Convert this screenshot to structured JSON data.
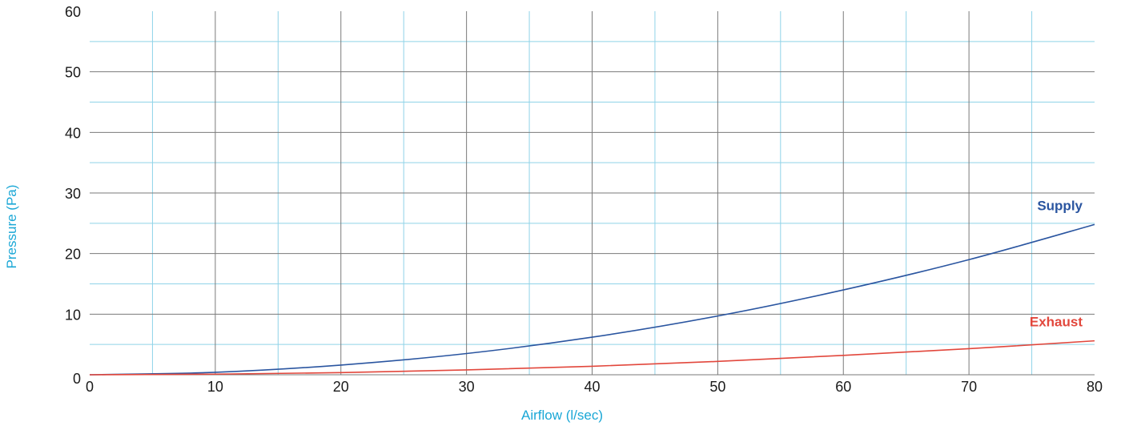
{
  "chart_data": {
    "type": "line",
    "xlabel": "Airflow (l/sec)",
    "ylabel": "Pressure (Pa)",
    "xlim": [
      0,
      80
    ],
    "ylim": [
      0,
      60
    ],
    "x_ticks": [
      "0",
      "10",
      "20",
      "30",
      "40",
      "50",
      "60",
      "70",
      "80"
    ],
    "y_ticks": [
      "0",
      "10",
      "20",
      "30",
      "40",
      "50",
      "60"
    ],
    "grid": true,
    "major_grid_color": "#7a7a7a",
    "minor_grid_color": "#8fd3e8",
    "axis_title_color": "#1aa7d6",
    "series": [
      {
        "name": "Supply",
        "color": "#2a55a0",
        "x": [
          0,
          10,
          20,
          30,
          40,
          50,
          60,
          70,
          80
        ],
        "y": [
          0,
          0.4,
          1.6,
          3.5,
          6.2,
          9.7,
          14,
          19,
          24.8
        ]
      },
      {
        "name": "Exhaust",
        "color": "#e2473c",
        "x": [
          0,
          10,
          20,
          30,
          40,
          50,
          60,
          70,
          80
        ],
        "y": [
          0,
          0.1,
          0.35,
          0.8,
          1.4,
          2.2,
          3.2,
          4.3,
          5.6
        ]
      }
    ]
  }
}
